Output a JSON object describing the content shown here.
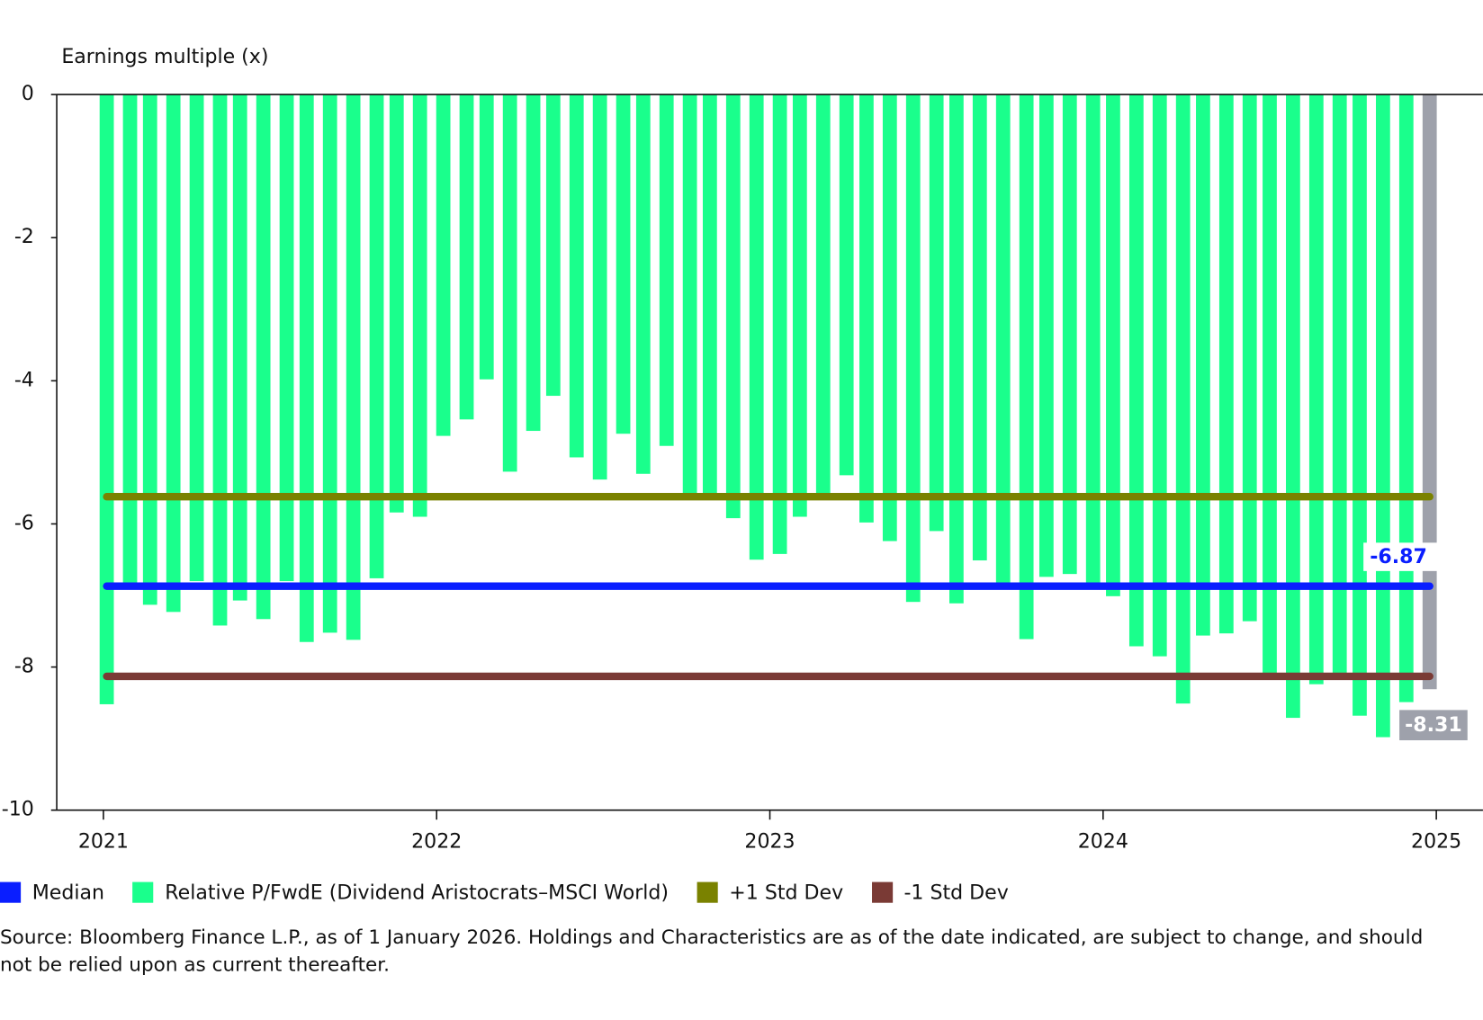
{
  "chart_data": {
    "type": "bar",
    "y_axis_label": "Earnings multiple (x)",
    "xlim": [
      2020.86,
      2025.14
    ],
    "xticks": [
      2021,
      2022,
      2023,
      2024,
      2025
    ],
    "ylim": [
      -10,
      0
    ],
    "yticks": [
      0,
      -2,
      -4,
      -6,
      -8,
      -10
    ],
    "series": [
      {
        "name": "Median",
        "type": "hline",
        "color": "#0a1eff",
        "value": -6.87,
        "show_value": true
      },
      {
        "name": "Relative P/FwdE (Dividend Aristocrats–MSCI World)",
        "type": "bar",
        "color": "#1aff8c",
        "x": [
          2021.01,
          2021.08,
          2021.14,
          2021.21,
          2021.28,
          2021.35,
          2021.41,
          2021.48,
          2021.55,
          2021.61,
          2021.68,
          2021.75,
          2021.82,
          2021.88,
          2021.95,
          2022.02,
          2022.09,
          2022.15,
          2022.22,
          2022.29,
          2022.35,
          2022.42,
          2022.49,
          2022.56,
          2022.62,
          2022.69,
          2022.76,
          2022.82,
          2022.89,
          2022.96,
          2023.03,
          2023.09,
          2023.16,
          2023.23,
          2023.29,
          2023.36,
          2023.43,
          2023.5,
          2023.56,
          2023.63,
          2023.7,
          2023.77,
          2023.83,
          2023.9,
          2023.97,
          2024.03,
          2024.1,
          2024.17,
          2024.24,
          2024.3,
          2024.37,
          2024.44,
          2024.5,
          2024.57,
          2024.64,
          2024.71,
          2024.77,
          2024.84,
          2024.91
        ],
        "values": [
          -8.52,
          -6.85,
          -7.13,
          -7.23,
          -6.8,
          -7.42,
          -7.07,
          -7.33,
          -6.8,
          -7.65,
          -7.52,
          -7.62,
          -6.76,
          -5.84,
          -5.9,
          -4.77,
          -4.54,
          -3.98,
          -5.27,
          -4.7,
          -4.21,
          -5.07,
          -5.38,
          -4.74,
          -5.3,
          -4.91,
          -5.61,
          -5.6,
          -5.92,
          -6.5,
          -6.42,
          -5.9,
          -5.58,
          -5.32,
          -5.98,
          -6.24,
          -7.09,
          -6.1,
          -7.11,
          -6.51,
          -6.84,
          -7.61,
          -6.74,
          -6.7,
          -6.84,
          -7.01,
          -7.71,
          -7.85,
          -8.51,
          -7.56,
          -7.53,
          -7.36,
          -8.12,
          -8.71,
          -8.24,
          -8.12,
          -8.68,
          -8.98,
          -8.49
        ]
      },
      {
        "name": "+1 Std Dev",
        "type": "hline",
        "color": "#7a8200",
        "value": -5.62
      },
      {
        "name": "-1 Std Dev",
        "type": "hline",
        "color": "#7a3a35",
        "value": -8.13
      }
    ],
    "latest": {
      "x": 2024.98,
      "value": -8.31,
      "color": "#9ea1ab"
    },
    "source": "Source: Bloomberg Finance L.P., as of 1 January 2026. Holdings and Characteristics are as of the date indicated, are subject to change, and should not be relied upon as current thereafter."
  }
}
